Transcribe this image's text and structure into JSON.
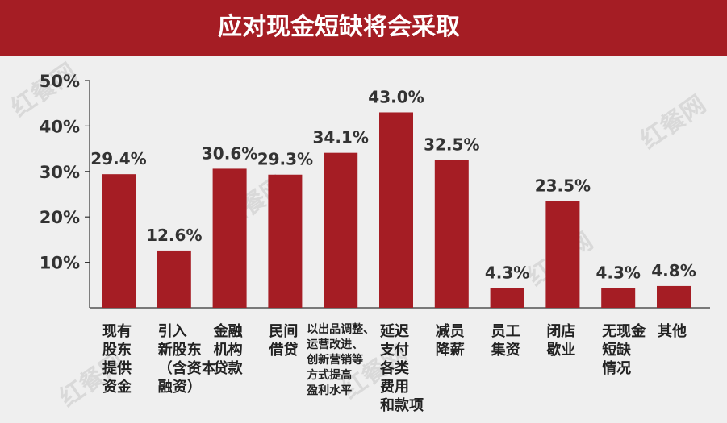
{
  "header": {
    "title": "应对现金短缺将会采取"
  },
  "watermark": {
    "text": "红餐网"
  },
  "colors": {
    "header_bg": "#a51d24",
    "bar": "#a51d24",
    "background": "#efefef"
  },
  "chart_data": {
    "type": "bar",
    "title": "应对现金短缺将会采取",
    "xlabel": "",
    "ylabel": "",
    "ylim": [
      0,
      50
    ],
    "yticks": [
      "10%",
      "20%",
      "30%",
      "40%",
      "50%"
    ],
    "grid": false,
    "categories": [
      "现有股东提供资金",
      "引入新股东（含资本融资）",
      "金融机构贷款",
      "民间借贷",
      "以出品调整、运营改进、创新营销等方式提高盈利水平",
      "延迟支付各类费用和款项",
      "减员降薪",
      "员工集资",
      "闭店歇业",
      "无现金短缺情况",
      "其他"
    ],
    "category_lines": [
      [
        "现有",
        "股东",
        "提供",
        "资金"
      ],
      [
        "引入",
        "新股东",
        "（含资本",
        "融资）"
      ],
      [
        "金融",
        "机构",
        "贷款"
      ],
      [
        "民间",
        "借贷"
      ],
      [
        "以出品调整、",
        "运营改进、",
        "创新营销等",
        "方式提高",
        "盈利水平"
      ],
      [
        "延迟",
        "支付",
        "各类",
        "费用",
        "和款项"
      ],
      [
        "减员",
        "降薪"
      ],
      [
        "员工",
        "集资"
      ],
      [
        "闭店",
        "歇业"
      ],
      [
        "无现金",
        "短缺",
        "情况"
      ],
      [
        "其他"
      ]
    ],
    "values": [
      29.4,
      12.6,
      30.6,
      29.3,
      34.1,
      43.0,
      32.5,
      4.3,
      23.5,
      4.3,
      4.8
    ],
    "data_labels": [
      "29.4%",
      "12.6%",
      "30.6%",
      "29.3%",
      "34.1%",
      "43.0%",
      "32.5%",
      "4.3%",
      "23.5%",
      "4.3%",
      "4.8%"
    ]
  }
}
